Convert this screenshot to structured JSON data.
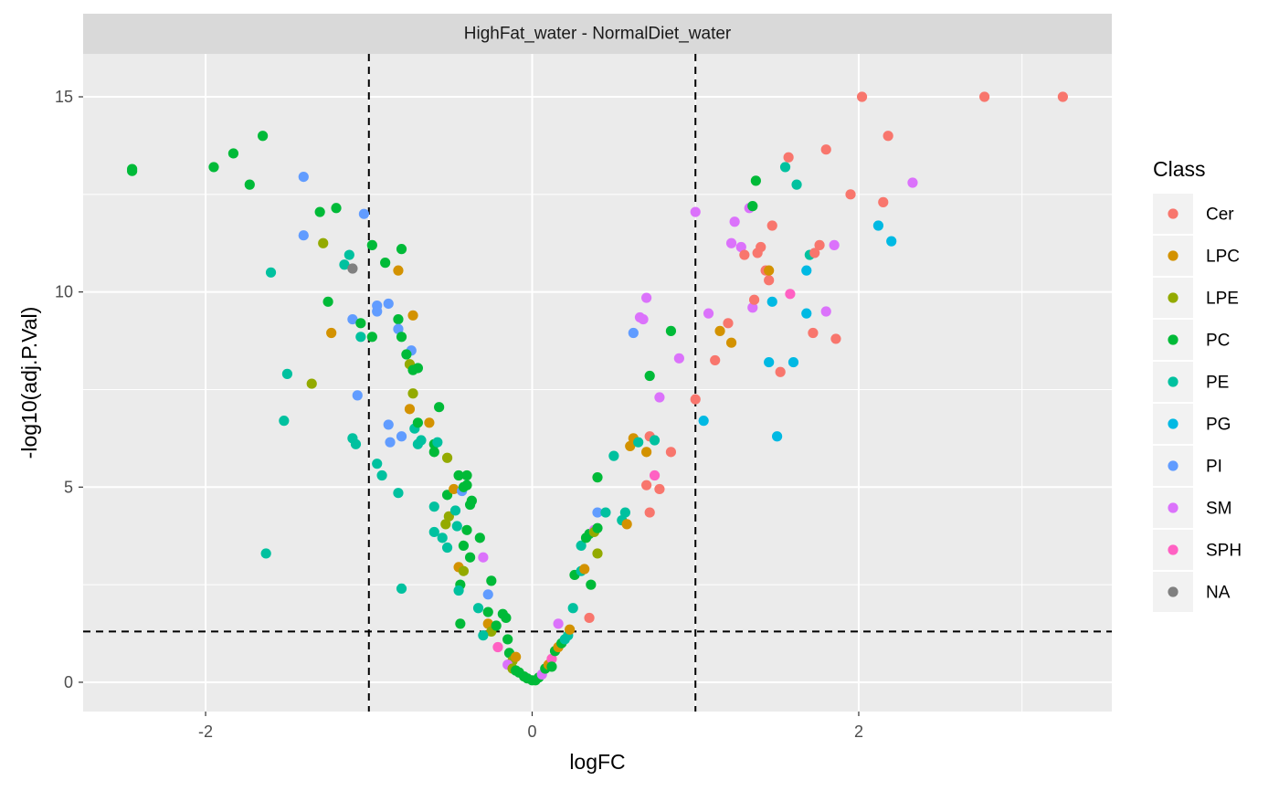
{
  "chart_data": {
    "type": "scatter",
    "panel_title": "HighFat_water - NormalDiet_water",
    "xlabel": "logFC",
    "ylabel": "-log10(adj.P.Val)",
    "xlim": [
      -2.75,
      3.55
    ],
    "ylim": [
      -0.75,
      16.1
    ],
    "x_ticks": [
      -2,
      0,
      2
    ],
    "y_ticks": [
      0,
      5,
      10,
      15
    ],
    "x_tick_labels": [
      "-2",
      "0",
      "2"
    ],
    "y_tick_labels": [
      "0",
      "5",
      "10",
      "15"
    ],
    "grid": true,
    "legend_position": "right",
    "reference_lines": {
      "vertical": [
        -1,
        1
      ],
      "horizontal": [
        1.3
      ]
    },
    "legend_title": "Class",
    "classes": [
      "Cer",
      "LPC",
      "LPE",
      "PC",
      "PE",
      "PG",
      "PI",
      "SM",
      "SPH",
      "NA"
    ],
    "colors": {
      "Cer": "#F8766D",
      "LPC": "#D39200",
      "LPE": "#93AA00",
      "PC": "#00BA38",
      "PE": "#00C19F",
      "PG": "#00B9E3",
      "PI": "#619CFF",
      "SM": "#DB72FB",
      "SPH": "#FF61C3",
      "NA": "#808080"
    },
    "points": [
      {
        "x": -2.45,
        "y": 13.15,
        "c": "PC"
      },
      {
        "x": -2.45,
        "y": 13.1,
        "c": "PC"
      },
      {
        "x": -1.95,
        "y": 13.2,
        "c": "PC"
      },
      {
        "x": -1.83,
        "y": 13.55,
        "c": "PC"
      },
      {
        "x": -1.73,
        "y": 12.75,
        "c": "PC"
      },
      {
        "x": -1.65,
        "y": 14.0,
        "c": "PC"
      },
      {
        "x": -1.6,
        "y": 10.5,
        "c": "PE"
      },
      {
        "x": -1.5,
        "y": 7.9,
        "c": "PE"
      },
      {
        "x": -1.52,
        "y": 6.7,
        "c": "PE"
      },
      {
        "x": -1.63,
        "y": 3.3,
        "c": "PE"
      },
      {
        "x": -1.4,
        "y": 12.95,
        "c": "PI"
      },
      {
        "x": -1.4,
        "y": 11.45,
        "c": "PI"
      },
      {
        "x": -1.35,
        "y": 7.65,
        "c": "LPE"
      },
      {
        "x": -1.3,
        "y": 12.05,
        "c": "PC"
      },
      {
        "x": -1.28,
        "y": 11.25,
        "c": "LPE"
      },
      {
        "x": -1.25,
        "y": 9.75,
        "c": "PC"
      },
      {
        "x": -1.23,
        "y": 8.95,
        "c": "LPC"
      },
      {
        "x": -1.2,
        "y": 12.15,
        "c": "PC"
      },
      {
        "x": -1.12,
        "y": 10.95,
        "c": "PE"
      },
      {
        "x": -1.15,
        "y": 10.7,
        "c": "PE"
      },
      {
        "x": -1.1,
        "y": 10.6,
        "c": "NA"
      },
      {
        "x": -1.1,
        "y": 9.3,
        "c": "PI"
      },
      {
        "x": -1.05,
        "y": 9.2,
        "c": "PC"
      },
      {
        "x": -1.05,
        "y": 8.85,
        "c": "PE"
      },
      {
        "x": -1.07,
        "y": 7.35,
        "c": "PI"
      },
      {
        "x": -1.1,
        "y": 6.25,
        "c": "PE"
      },
      {
        "x": -1.08,
        "y": 6.1,
        "c": "PE"
      },
      {
        "x": -1.03,
        "y": 12.0,
        "c": "PI"
      },
      {
        "x": -0.98,
        "y": 11.2,
        "c": "PC"
      },
      {
        "x": -0.98,
        "y": 8.85,
        "c": "PC"
      },
      {
        "x": -0.95,
        "y": 9.65,
        "c": "PI"
      },
      {
        "x": -0.95,
        "y": 9.5,
        "c": "PI"
      },
      {
        "x": -0.9,
        "y": 10.75,
        "c": "PC"
      },
      {
        "x": -0.88,
        "y": 9.7,
        "c": "PI"
      },
      {
        "x": -0.8,
        "y": 11.1,
        "c": "PC"
      },
      {
        "x": -0.82,
        "y": 10.55,
        "c": "LPC"
      },
      {
        "x": -0.82,
        "y": 9.3,
        "c": "PC"
      },
      {
        "x": -0.82,
        "y": 9.05,
        "c": "PI"
      },
      {
        "x": -0.8,
        "y": 8.85,
        "c": "PC"
      },
      {
        "x": -0.73,
        "y": 9.4,
        "c": "LPC"
      },
      {
        "x": -0.74,
        "y": 8.5,
        "c": "PI"
      },
      {
        "x": -0.75,
        "y": 8.15,
        "c": "LPE"
      },
      {
        "x": -0.73,
        "y": 8.0,
        "c": "PC"
      },
      {
        "x": -0.7,
        "y": 8.05,
        "c": "PC"
      },
      {
        "x": -0.77,
        "y": 8.4,
        "c": "PC"
      },
      {
        "x": -0.95,
        "y": 5.6,
        "c": "PE"
      },
      {
        "x": -0.92,
        "y": 5.3,
        "c": "PE"
      },
      {
        "x": -0.88,
        "y": 6.6,
        "c": "PI"
      },
      {
        "x": -0.87,
        "y": 6.15,
        "c": "PI"
      },
      {
        "x": -0.82,
        "y": 4.85,
        "c": "PE"
      },
      {
        "x": -0.8,
        "y": 6.3,
        "c": "PI"
      },
      {
        "x": -0.8,
        "y": 2.4,
        "c": "PE"
      },
      {
        "x": -0.75,
        "y": 7.0,
        "c": "LPC"
      },
      {
        "x": -0.73,
        "y": 7.4,
        "c": "LPE"
      },
      {
        "x": -0.72,
        "y": 6.5,
        "c": "PE"
      },
      {
        "x": -0.7,
        "y": 6.65,
        "c": "PC"
      },
      {
        "x": -0.7,
        "y": 6.1,
        "c": "PE"
      },
      {
        "x": -0.68,
        "y": 6.2,
        "c": "PE"
      },
      {
        "x": -0.63,
        "y": 6.65,
        "c": "LPC"
      },
      {
        "x": -0.6,
        "y": 6.1,
        "c": "PC"
      },
      {
        "x": -0.6,
        "y": 5.9,
        "c": "PC"
      },
      {
        "x": -0.58,
        "y": 6.15,
        "c": "PE"
      },
      {
        "x": -0.57,
        "y": 7.05,
        "c": "PC"
      },
      {
        "x": -0.52,
        "y": 5.75,
        "c": "LPE"
      },
      {
        "x": -0.6,
        "y": 4.5,
        "c": "PE"
      },
      {
        "x": -0.6,
        "y": 3.85,
        "c": "PE"
      },
      {
        "x": -0.55,
        "y": 3.7,
        "c": "PE"
      },
      {
        "x": -0.52,
        "y": 3.45,
        "c": "PE"
      },
      {
        "x": -0.53,
        "y": 4.05,
        "c": "LPE"
      },
      {
        "x": -0.51,
        "y": 4.25,
        "c": "LPE"
      },
      {
        "x": -0.52,
        "y": 4.8,
        "c": "PC"
      },
      {
        "x": -0.48,
        "y": 4.95,
        "c": "LPC"
      },
      {
        "x": -0.47,
        "y": 4.4,
        "c": "PE"
      },
      {
        "x": -0.46,
        "y": 4.0,
        "c": "PE"
      },
      {
        "x": -0.45,
        "y": 5.3,
        "c": "PC"
      },
      {
        "x": -0.43,
        "y": 4.9,
        "c": "PI"
      },
      {
        "x": -0.42,
        "y": 5.0,
        "c": "PC"
      },
      {
        "x": -0.4,
        "y": 5.05,
        "c": "PC"
      },
      {
        "x": -0.4,
        "y": 5.3,
        "c": "PC"
      },
      {
        "x": -0.38,
        "y": 4.55,
        "c": "PC"
      },
      {
        "x": -0.37,
        "y": 4.65,
        "c": "PC"
      },
      {
        "x": -0.4,
        "y": 3.9,
        "c": "PC"
      },
      {
        "x": -0.38,
        "y": 3.2,
        "c": "PC"
      },
      {
        "x": -0.42,
        "y": 3.5,
        "c": "PC"
      },
      {
        "x": -0.45,
        "y": 2.95,
        "c": "LPC"
      },
      {
        "x": -0.42,
        "y": 2.85,
        "c": "LPE"
      },
      {
        "x": -0.44,
        "y": 2.5,
        "c": "PC"
      },
      {
        "x": -0.45,
        "y": 2.35,
        "c": "PE"
      },
      {
        "x": -0.44,
        "y": 1.5,
        "c": "PC"
      },
      {
        "x": -0.32,
        "y": 3.7,
        "c": "PC"
      },
      {
        "x": -0.3,
        "y": 3.2,
        "c": "SM"
      },
      {
        "x": -0.25,
        "y": 2.6,
        "c": "PC"
      },
      {
        "x": -0.27,
        "y": 2.25,
        "c": "PI"
      },
      {
        "x": -0.33,
        "y": 1.9,
        "c": "PE"
      },
      {
        "x": -0.27,
        "y": 1.8,
        "c": "PC"
      },
      {
        "x": -0.27,
        "y": 1.5,
        "c": "LPC"
      },
      {
        "x": -0.25,
        "y": 1.3,
        "c": "LPE"
      },
      {
        "x": -0.22,
        "y": 1.45,
        "c": "PC"
      },
      {
        "x": -0.18,
        "y": 1.75,
        "c": "PC"
      },
      {
        "x": -0.16,
        "y": 1.65,
        "c": "PC"
      },
      {
        "x": -0.3,
        "y": 1.2,
        "c": "PE"
      },
      {
        "x": -0.21,
        "y": 0.9,
        "c": "SPH"
      },
      {
        "x": -0.15,
        "y": 1.1,
        "c": "PC"
      },
      {
        "x": -0.14,
        "y": 0.75,
        "c": "PC"
      },
      {
        "x": -0.12,
        "y": 0.55,
        "c": "LPE"
      },
      {
        "x": -0.1,
        "y": 0.65,
        "c": "LPC"
      },
      {
        "x": -0.15,
        "y": 0.45,
        "c": "SM"
      },
      {
        "x": -0.12,
        "y": 0.35,
        "c": "LPE"
      },
      {
        "x": -0.1,
        "y": 0.3,
        "c": "PC"
      },
      {
        "x": -0.08,
        "y": 0.25,
        "c": "PC"
      },
      {
        "x": -0.05,
        "y": 0.15,
        "c": "PC"
      },
      {
        "x": -0.03,
        "y": 0.1,
        "c": "PC"
      },
      {
        "x": 0.0,
        "y": 0.05,
        "c": "PC"
      },
      {
        "x": 0.02,
        "y": 0.05,
        "c": "PC"
      },
      {
        "x": 0.04,
        "y": 0.12,
        "c": "PC"
      },
      {
        "x": 0.06,
        "y": 0.2,
        "c": "SM"
      },
      {
        "x": 0.08,
        "y": 0.35,
        "c": "PC"
      },
      {
        "x": 0.1,
        "y": 0.45,
        "c": "LPC"
      },
      {
        "x": 0.12,
        "y": 0.6,
        "c": "SPH"
      },
      {
        "x": 0.12,
        "y": 0.4,
        "c": "PC"
      },
      {
        "x": 0.14,
        "y": 0.8,
        "c": "PC"
      },
      {
        "x": 0.16,
        "y": 0.9,
        "c": "LPC"
      },
      {
        "x": 0.18,
        "y": 1.0,
        "c": "PC"
      },
      {
        "x": 0.16,
        "y": 1.5,
        "c": "SM"
      },
      {
        "x": 0.2,
        "y": 1.1,
        "c": "PE"
      },
      {
        "x": 0.22,
        "y": 1.2,
        "c": "PE"
      },
      {
        "x": 0.23,
        "y": 1.35,
        "c": "LPC"
      },
      {
        "x": 0.25,
        "y": 1.9,
        "c": "PE"
      },
      {
        "x": 0.26,
        "y": 2.75,
        "c": "PC"
      },
      {
        "x": 0.3,
        "y": 2.85,
        "c": "PE"
      },
      {
        "x": 0.32,
        "y": 2.9,
        "c": "LPC"
      },
      {
        "x": 0.3,
        "y": 3.5,
        "c": "PE"
      },
      {
        "x": 0.33,
        "y": 3.7,
        "c": "PC"
      },
      {
        "x": 0.35,
        "y": 3.8,
        "c": "PC"
      },
      {
        "x": 0.36,
        "y": 2.5,
        "c": "PC"
      },
      {
        "x": 0.38,
        "y": 3.9,
        "c": "SM"
      },
      {
        "x": 0.38,
        "y": 3.85,
        "c": "LPE"
      },
      {
        "x": 0.4,
        "y": 3.95,
        "c": "PC"
      },
      {
        "x": 0.4,
        "y": 3.3,
        "c": "LPE"
      },
      {
        "x": 0.4,
        "y": 4.35,
        "c": "PI"
      },
      {
        "x": 0.45,
        "y": 4.35,
        "c": "PE"
      },
      {
        "x": 0.4,
        "y": 5.25,
        "c": "PC"
      },
      {
        "x": 0.35,
        "y": 1.65,
        "c": "Cer"
      },
      {
        "x": 0.5,
        "y": 5.8,
        "c": "PE"
      },
      {
        "x": 0.55,
        "y": 4.15,
        "c": "PE"
      },
      {
        "x": 0.57,
        "y": 4.35,
        "c": "PE"
      },
      {
        "x": 0.58,
        "y": 4.05,
        "c": "LPC"
      },
      {
        "x": 0.6,
        "y": 6.05,
        "c": "LPC"
      },
      {
        "x": 0.62,
        "y": 6.25,
        "c": "LPC"
      },
      {
        "x": 0.65,
        "y": 6.15,
        "c": "PE"
      },
      {
        "x": 0.7,
        "y": 5.9,
        "c": "LPC"
      },
      {
        "x": 0.72,
        "y": 6.3,
        "c": "Cer"
      },
      {
        "x": 0.75,
        "y": 6.2,
        "c": "PE"
      },
      {
        "x": 0.7,
        "y": 5.05,
        "c": "Cer"
      },
      {
        "x": 0.75,
        "y": 5.3,
        "c": "SPH"
      },
      {
        "x": 0.78,
        "y": 4.95,
        "c": "Cer"
      },
      {
        "x": 0.72,
        "y": 4.35,
        "c": "Cer"
      },
      {
        "x": 0.85,
        "y": 5.9,
        "c": "Cer"
      },
      {
        "x": 0.78,
        "y": 7.3,
        "c": "SM"
      },
      {
        "x": 0.72,
        "y": 7.85,
        "c": "PC"
      },
      {
        "x": 0.62,
        "y": 8.95,
        "c": "PI"
      },
      {
        "x": 0.66,
        "y": 9.35,
        "c": "SM"
      },
      {
        "x": 0.68,
        "y": 9.3,
        "c": "SM"
      },
      {
        "x": 0.7,
        "y": 9.85,
        "c": "SM"
      },
      {
        "x": 0.85,
        "y": 9.0,
        "c": "PC"
      },
      {
        "x": 0.9,
        "y": 8.3,
        "c": "SM"
      },
      {
        "x": 1.0,
        "y": 12.05,
        "c": "SM"
      },
      {
        "x": 1.0,
        "y": 7.25,
        "c": "Cer"
      },
      {
        "x": 1.05,
        "y": 6.7,
        "c": "PG"
      },
      {
        "x": 1.08,
        "y": 9.45,
        "c": "SM"
      },
      {
        "x": 1.12,
        "y": 8.25,
        "c": "Cer"
      },
      {
        "x": 1.15,
        "y": 9.0,
        "c": "LPC"
      },
      {
        "x": 1.2,
        "y": 9.2,
        "c": "Cer"
      },
      {
        "x": 1.22,
        "y": 8.7,
        "c": "LPC"
      },
      {
        "x": 1.22,
        "y": 11.25,
        "c": "SM"
      },
      {
        "x": 1.24,
        "y": 11.8,
        "c": "SM"
      },
      {
        "x": 1.28,
        "y": 11.15,
        "c": "SM"
      },
      {
        "x": 1.3,
        "y": 10.95,
        "c": "Cer"
      },
      {
        "x": 1.33,
        "y": 12.15,
        "c": "SM"
      },
      {
        "x": 1.35,
        "y": 12.2,
        "c": "PC"
      },
      {
        "x": 1.37,
        "y": 12.85,
        "c": "PC"
      },
      {
        "x": 1.38,
        "y": 11.0,
        "c": "Cer"
      },
      {
        "x": 1.4,
        "y": 11.15,
        "c": "Cer"
      },
      {
        "x": 1.43,
        "y": 10.55,
        "c": "Cer"
      },
      {
        "x": 1.45,
        "y": 10.3,
        "c": "Cer"
      },
      {
        "x": 1.45,
        "y": 10.55,
        "c": "LPC"
      },
      {
        "x": 1.35,
        "y": 9.6,
        "c": "SM"
      },
      {
        "x": 1.36,
        "y": 9.8,
        "c": "Cer"
      },
      {
        "x": 1.47,
        "y": 11.7,
        "c": "Cer"
      },
      {
        "x": 1.47,
        "y": 9.75,
        "c": "PG"
      },
      {
        "x": 1.45,
        "y": 8.2,
        "c": "PG"
      },
      {
        "x": 1.52,
        "y": 7.95,
        "c": "Cer"
      },
      {
        "x": 1.5,
        "y": 6.3,
        "c": "PG"
      },
      {
        "x": 1.55,
        "y": 13.2,
        "c": "PE"
      },
      {
        "x": 1.57,
        "y": 13.45,
        "c": "Cer"
      },
      {
        "x": 1.58,
        "y": 9.95,
        "c": "SPH"
      },
      {
        "x": 1.62,
        "y": 12.75,
        "c": "PE"
      },
      {
        "x": 1.6,
        "y": 8.2,
        "c": "PG"
      },
      {
        "x": 1.68,
        "y": 10.55,
        "c": "PG"
      },
      {
        "x": 1.7,
        "y": 10.95,
        "c": "PE"
      },
      {
        "x": 1.68,
        "y": 9.45,
        "c": "PG"
      },
      {
        "x": 1.73,
        "y": 11.0,
        "c": "Cer"
      },
      {
        "x": 1.72,
        "y": 8.95,
        "c": "Cer"
      },
      {
        "x": 1.76,
        "y": 11.2,
        "c": "Cer"
      },
      {
        "x": 1.8,
        "y": 13.65,
        "c": "Cer"
      },
      {
        "x": 1.8,
        "y": 9.5,
        "c": "SM"
      },
      {
        "x": 1.85,
        "y": 11.2,
        "c": "SM"
      },
      {
        "x": 1.86,
        "y": 8.8,
        "c": "Cer"
      },
      {
        "x": 1.95,
        "y": 12.5,
        "c": "Cer"
      },
      {
        "x": 2.02,
        "y": 15.0,
        "c": "Cer"
      },
      {
        "x": 2.12,
        "y": 11.7,
        "c": "PG"
      },
      {
        "x": 2.15,
        "y": 12.3,
        "c": "Cer"
      },
      {
        "x": 2.18,
        "y": 14.0,
        "c": "Cer"
      },
      {
        "x": 2.2,
        "y": 11.3,
        "c": "PG"
      },
      {
        "x": 2.33,
        "y": 12.8,
        "c": "SM"
      },
      {
        "x": 2.77,
        "y": 15.0,
        "c": "Cer"
      },
      {
        "x": 3.25,
        "y": 15.0,
        "c": "Cer"
      }
    ]
  }
}
